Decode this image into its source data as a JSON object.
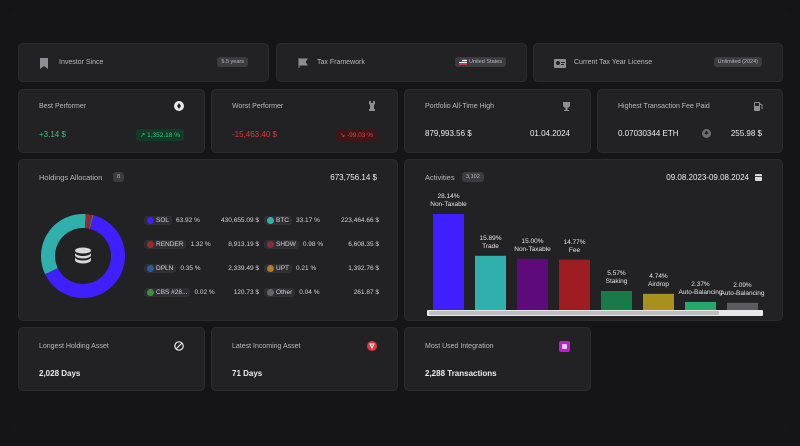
{
  "top_row": [
    {
      "label": "Investor Since",
      "pill": "5.5 years",
      "icon": "bookmark-icon"
    },
    {
      "label": "Tax Framework",
      "pill": "United States",
      "icon": "flag-icon"
    },
    {
      "label": "Current Tax Year License",
      "pill": "Unlimited (2024)",
      "icon": "license-icon"
    }
  ],
  "best": {
    "label": "Best Performer",
    "value": "+3.14 $",
    "badge": "↗ 1,352.18 %"
  },
  "worst": {
    "label": "Worst Performer",
    "value": "-15,463.40 $",
    "badge": "↘ -99.03 %"
  },
  "ath": {
    "label": "Portfolio All-Time High",
    "value": "879,993.56 $",
    "date": "01.04.2024"
  },
  "fee": {
    "label": "Highest Transaction Fee Paid",
    "value": "0.07030344 ETH",
    "usd": "255.98 $"
  },
  "holdings": {
    "title": "Holdings Allocation",
    "count": "8",
    "total": "673,756.14 $",
    "items": [
      {
        "name": "SOL",
        "pct": "63.92 %",
        "value": "430,655.09 $",
        "color": "#3f1fff"
      },
      {
        "name": "BTC",
        "pct": "33.17 %",
        "value": "223,464.66 $",
        "color": "#2fb0ad"
      },
      {
        "name": "RENDER",
        "pct": "1.32 %",
        "value": "8,913.19 $",
        "color": "#9b2a2a"
      },
      {
        "name": "SHDW",
        "pct": "0.98 %",
        "value": "6,608.35 $",
        "color": "#8a2a3a"
      },
      {
        "name": "DPLN",
        "pct": "0.35 %",
        "value": "2,339.49 $",
        "color": "#2a5b9e"
      },
      {
        "name": "UPT",
        "pct": "0.21 %",
        "value": "1,392.76 $",
        "color": "#b37b1a"
      },
      {
        "name": "CBS #28...",
        "pct": "0.02 %",
        "value": "120.73 $",
        "color": "#3e8f3e"
      },
      {
        "name": "Other",
        "pct": "0.04 %",
        "value": "261.87 $",
        "color": "#666666"
      }
    ]
  },
  "activities": {
    "title": "Activities",
    "count": "3,102",
    "range": "09.08.2023-09.08.2024"
  },
  "chart_data": {
    "type": "bar",
    "categories": [
      "Non-Taxable",
      "Trade",
      "Non-Taxable",
      "Fee",
      "Staking",
      "Airdrop",
      "Auto-Balancing",
      "Auto-Balancing"
    ],
    "values": [
      28.14,
      15.89,
      15.0,
      14.77,
      5.57,
      4.74,
      2.37,
      2.09
    ],
    "labels": [
      "28.14%",
      "15.89%",
      "15.00%",
      "14.77%",
      "5.57%",
      "4.74%",
      "2.37%",
      "2.09%"
    ],
    "colors": [
      "#3f1fff",
      "#2fb0ad",
      "#5e0a7a",
      "#9e1d22",
      "#177a48",
      "#a8901e",
      "#27a86a",
      "#5c5c60"
    ],
    "ylim": [
      0,
      28.14
    ]
  },
  "bottom": [
    {
      "label": "Longest Holding Asset",
      "value": "2,028 Days",
      "icon": "no-entry-icon"
    },
    {
      "label": "Latest Incoming Asset",
      "value": "71 Days",
      "icon": "shield-icon"
    },
    {
      "label": "Most Used Integration",
      "value": "2,288 Transactions",
      "icon": "integration-icon"
    }
  ]
}
